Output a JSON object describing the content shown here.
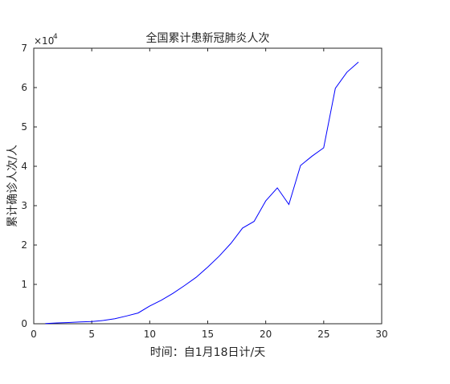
{
  "chart_data": {
    "type": "line",
    "title": "全国累计患新冠肺炎人次",
    "xlabel": "时间：自1月18日计/天",
    "ylabel": "累计确诊人次/人",
    "xlim": [
      0,
      30
    ],
    "ylim": [
      0,
      70000
    ],
    "y_exponent_label": "×10",
    "y_exponent_power": "4",
    "x_ticks": [
      0,
      5,
      10,
      15,
      20,
      25,
      30
    ],
    "y_ticks": [
      0,
      10000,
      20000,
      30000,
      40000,
      50000,
      60000,
      70000
    ],
    "y_tick_labels": [
      "0",
      "1",
      "2",
      "3",
      "4",
      "5",
      "6",
      "7"
    ],
    "x_tick_labels": [
      "0",
      "5",
      "10",
      "15",
      "20",
      "25",
      "30"
    ],
    "grid": false,
    "series": [
      {
        "color": "#0000ff",
        "x": [
          1,
          2,
          3,
          4,
          5,
          6,
          7,
          8,
          9,
          10,
          11,
          12,
          13,
          14,
          15,
          16,
          17,
          18,
          19,
          20,
          21,
          22,
          23,
          24,
          25,
          26,
          27,
          28
        ],
        "y": [
          60,
          200,
          300,
          440,
          570,
          830,
          1290,
          1980,
          2740,
          4510,
          5970,
          7710,
          9690,
          11790,
          14380,
          17200,
          20430,
          24300,
          26000,
          31200,
          34500,
          30300,
          40200,
          42600,
          44700,
          59800,
          63900,
          66500
        ]
      }
    ]
  }
}
